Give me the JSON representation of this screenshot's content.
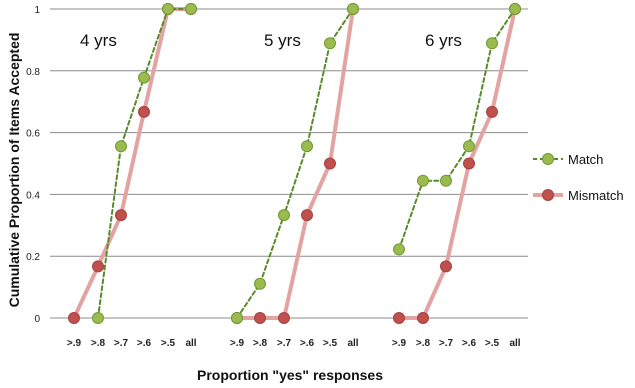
{
  "chart_data": {
    "type": "line",
    "xlabel": "Proportion \"yes\" responses",
    "ylabel": "Cumulative Proportion of Items Accepted",
    "ylim": [
      0,
      1
    ],
    "yticks": [
      "0",
      "0.2",
      "0.4",
      "0.6",
      "0.8",
      "1"
    ],
    "ytick_values": [
      0,
      0.2,
      0.4,
      0.6,
      0.8,
      1
    ],
    "categories": [
      ">.9",
      ">.8",
      ">.7",
      ">.6",
      ">.5",
      "all"
    ],
    "grid": "horizontal",
    "legend_position": "right",
    "panels": [
      {
        "label": "4 yrs",
        "series": [
          {
            "name": "Match",
            "values": [
              null,
              0.0,
              0.556,
              0.778,
              1.0,
              1.0
            ]
          },
          {
            "name": "Mismatch",
            "values": [
              0.0,
              0.167,
              0.333,
              0.667,
              1.0,
              1.0
            ]
          }
        ]
      },
      {
        "label": "5 yrs",
        "series": [
          {
            "name": "Match",
            "values": [
              0.0,
              0.111,
              0.333,
              0.556,
              0.889,
              1.0
            ]
          },
          {
            "name": "Mismatch",
            "values": [
              0.0,
              0.0,
              0.0,
              0.333,
              0.5,
              1.0
            ]
          }
        ]
      },
      {
        "label": "6 yrs",
        "series": [
          {
            "name": "Match",
            "values": [
              0.222,
              0.444,
              0.444,
              0.556,
              0.889,
              1.0
            ]
          },
          {
            "name": "Mismatch",
            "values": [
              0.0,
              0.0,
              0.167,
              0.5,
              0.667,
              1.0
            ]
          }
        ]
      }
    ],
    "series_styles": [
      {
        "name": "Match",
        "line_color": "#5a8a2a",
        "marker_color": "#9bbb4f",
        "marker_edge": "#6e9a35",
        "dash": true
      },
      {
        "name": "Mismatch",
        "line_color": "#e3a3a3",
        "marker_color": "#c0504d",
        "marker_edge": "#a34440",
        "dash": false
      }
    ],
    "legend": [
      "Match",
      "Mismatch"
    ]
  }
}
